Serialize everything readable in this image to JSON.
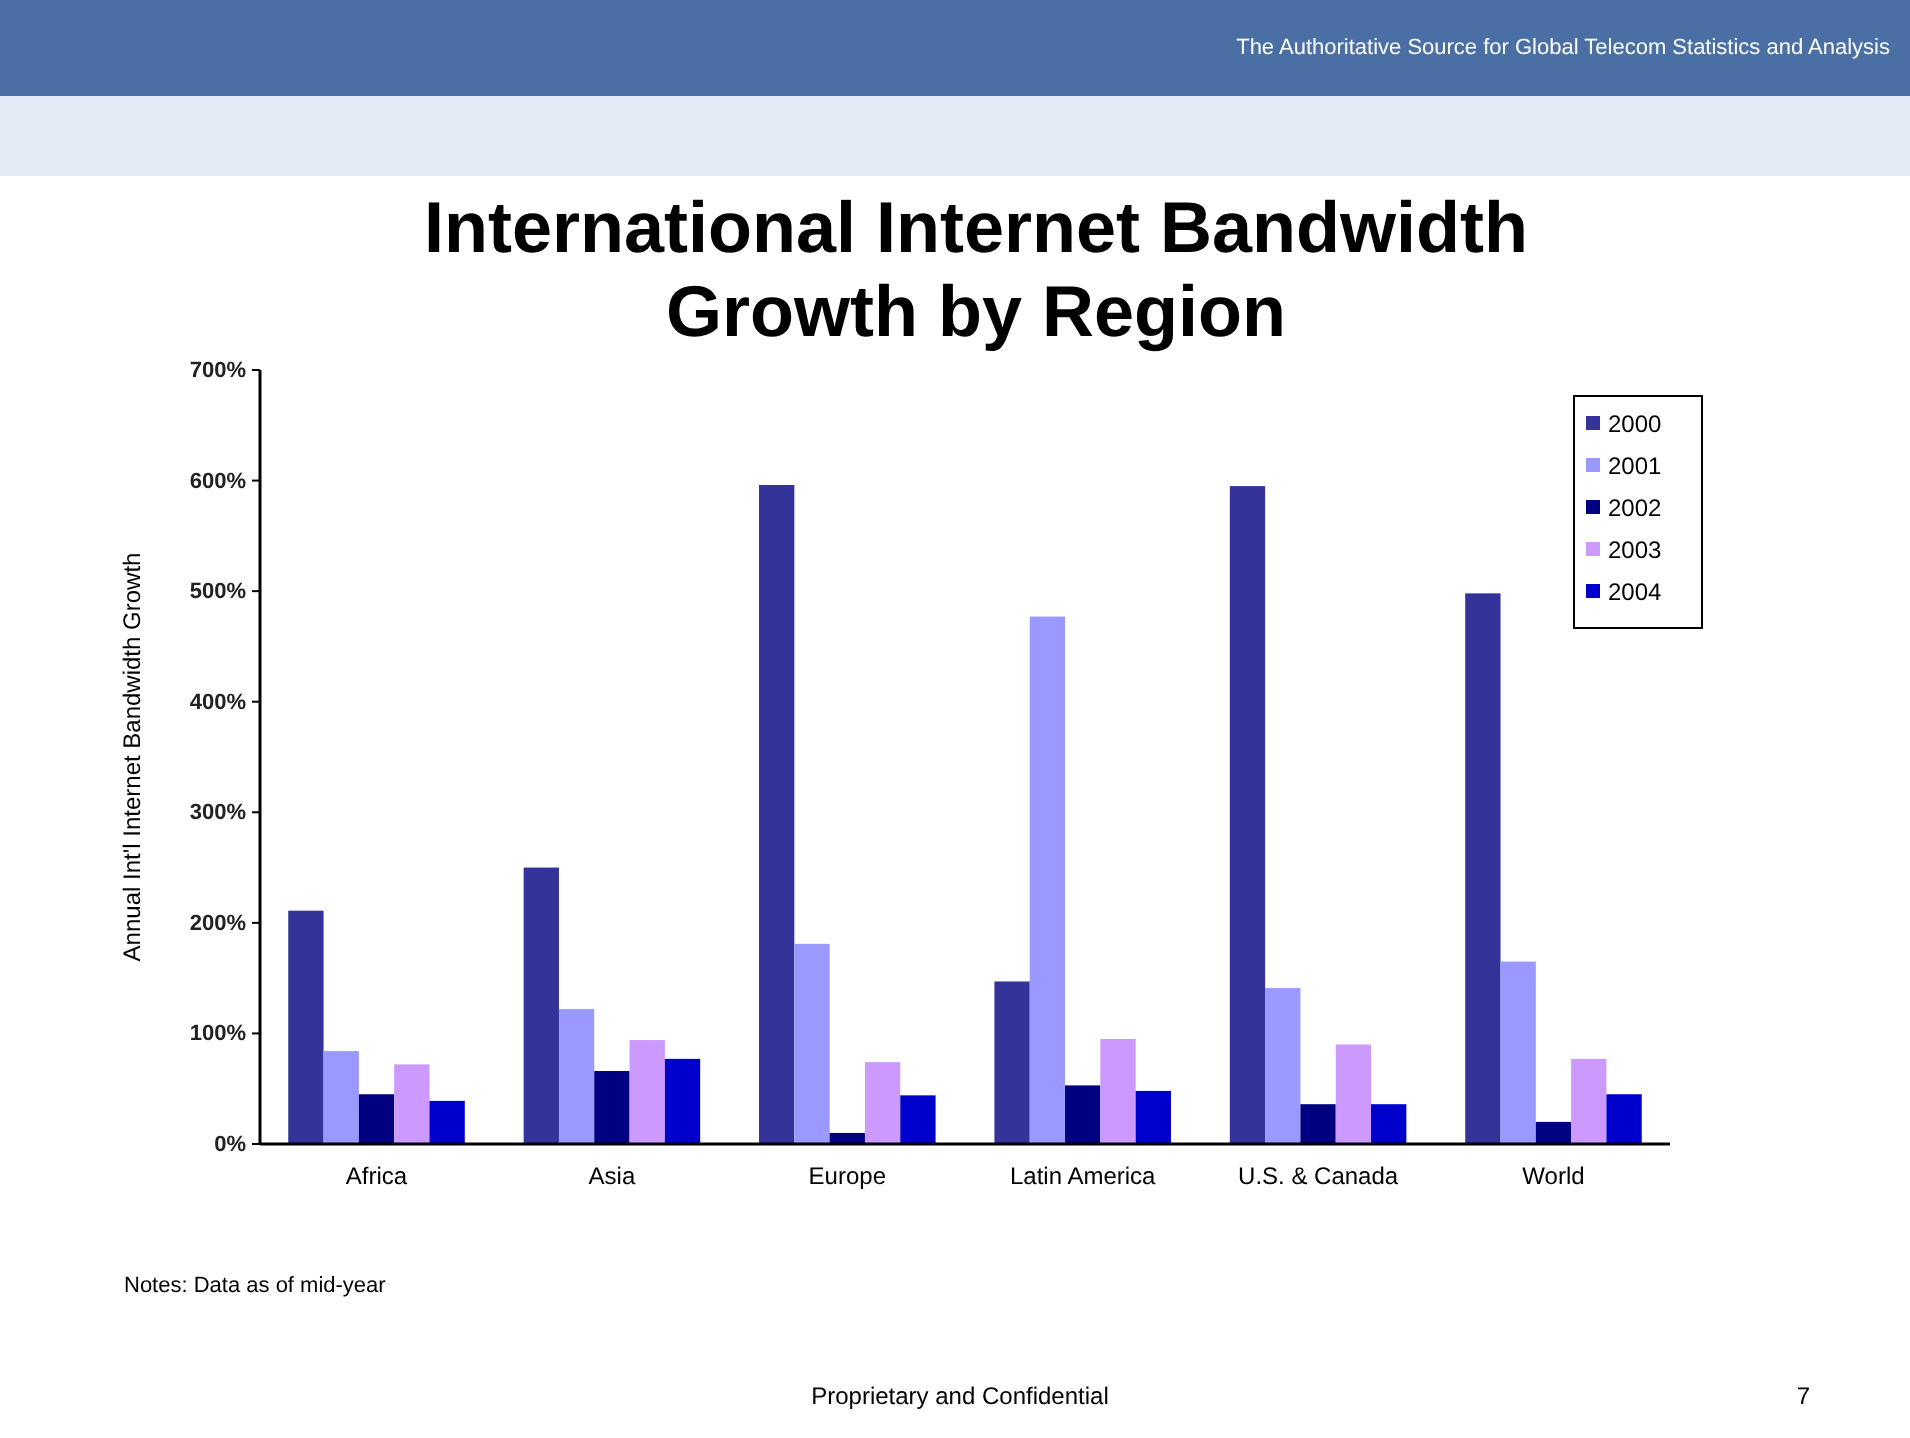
{
  "chart_data": {
    "type": "bar",
    "title": "International Internet Bandwidth Growth by Region",
    "ylabel": "Annual Int'l Internet Bandwidth Growth",
    "categories": [
      "Africa",
      "Asia",
      "Europe",
      "Latin America",
      "U.S. & Canada",
      "World"
    ],
    "series": [
      {
        "name": "2000",
        "color": "#333399",
        "values": [
          211,
          250,
          596,
          147,
          595,
          498
        ]
      },
      {
        "name": "2001",
        "color": "#9999ff",
        "values": [
          84,
          122,
          181,
          477,
          141,
          165
        ]
      },
      {
        "name": "2002",
        "color": "#000080",
        "values": [
          45,
          66,
          10,
          53,
          36,
          20
        ]
      },
      {
        "name": "2003",
        "color": "#cc99ff",
        "values": [
          72,
          94,
          74,
          95,
          90,
          77
        ]
      },
      {
        "name": "2004",
        "color": "#0000cc",
        "values": [
          39,
          77,
          44,
          48,
          36,
          45
        ]
      }
    ],
    "ylim": [
      0,
      700
    ],
    "yticks": [
      {
        "value": 0,
        "label": "0%"
      },
      {
        "value": 100,
        "label": "100%"
      },
      {
        "value": 200,
        "label": "200%"
      },
      {
        "value": 300,
        "label": "300%"
      },
      {
        "value": 400,
        "label": "400%"
      },
      {
        "value": 500,
        "label": "500%"
      },
      {
        "value": 600,
        "label": "600%"
      },
      {
        "value": 700,
        "label": "700%"
      }
    ],
    "grid": false,
    "legend": "top right",
    "annotations": [
      "The Authoritative Source for Global Telecom Statistics and Analysis",
      "Notes:  Data as of mid-year",
      "Proprietary and Confidential",
      "7"
    ]
  }
}
